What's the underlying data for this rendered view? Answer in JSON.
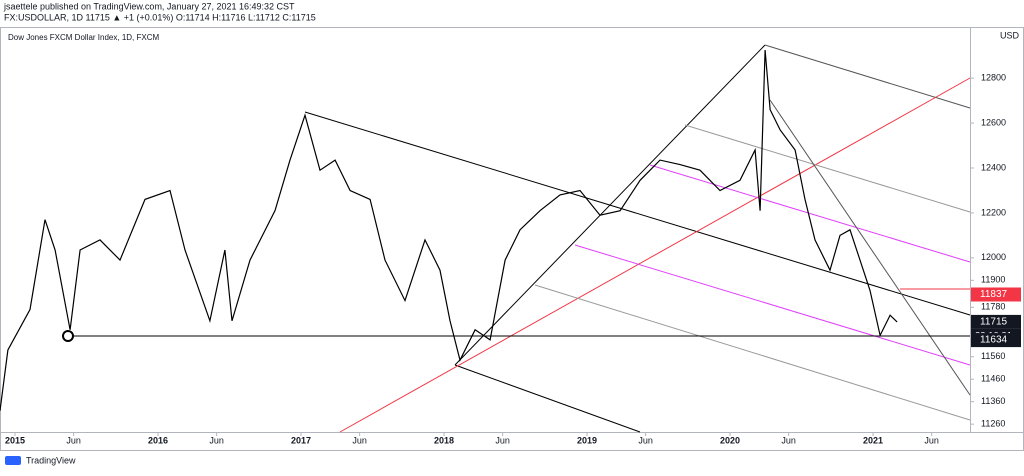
{
  "header": {
    "line1": "jsaettele published on TradingView.com, January 27, 2021 16:49:32 CST",
    "line2": "FX:USDOLLAR, 1D  11715 ▲ +1 (+0.01%)  O:11714  H:11716  L:11712  C:11715"
  },
  "footer": {
    "brand": "TradingView"
  },
  "chart_data": {
    "type": "line",
    "title": "Dow Jones FXCM Dollar Index, 1D, FXCM",
    "y_unit": "USD",
    "series": [
      {
        "name": "Dow Jones FXCM Dollar Index, 1D, FXCM",
        "color": "#000000",
        "x": [
          2014.895,
          2014.95,
          2015.105,
          2015.21,
          2015.28,
          2015.385,
          2015.455,
          2015.594,
          2015.734,
          2015.909,
          2016.084,
          2016.189,
          2016.363,
          2016.468,
          2016.517,
          2016.643,
          2016.818,
          2016.923,
          2017.028,
          2017.133,
          2017.238,
          2017.343,
          2017.483,
          2017.587,
          2017.727,
          2017.867,
          2017.972,
          2018.042,
          2018.112,
          2018.217,
          2018.322,
          2018.427,
          2018.531,
          2018.671,
          2018.811,
          2018.951,
          2019.091,
          2019.231,
          2019.371,
          2019.51,
          2019.65,
          2019.79,
          2019.93,
          2020.07,
          2020.175,
          2020.21,
          2020.245,
          2020.28,
          2020.35,
          2020.455,
          2020.524,
          2020.594,
          2020.699,
          2020.769,
          2020.839,
          2020.909,
          2020.979,
          2021.049,
          2021.119,
          2021.168
        ],
        "values": [
          11320,
          11590,
          11770,
          12170,
          12035,
          11680,
          12035,
          12080,
          11990,
          12260,
          12300,
          12035,
          11720,
          12035,
          11720,
          11990,
          12210,
          12435,
          12635,
          12390,
          12435,
          12300,
          12260,
          11990,
          11810,
          12080,
          11945,
          11720,
          11545,
          11680,
          11635,
          11990,
          12125,
          12210,
          12280,
          12300,
          12190,
          12210,
          12345,
          12435,
          12415,
          12390,
          12300,
          12345,
          12480,
          12210,
          12925,
          12660,
          12570,
          12480,
          12260,
          12080,
          11945,
          12100,
          12125,
          11990,
          11855,
          11655,
          11745,
          11715
        ]
      }
    ],
    "price_labels": [
      {
        "value": 11837,
        "color": "#f23645"
      },
      {
        "value": 11715,
        "color": "#131722"
      },
      {
        "value": 11634,
        "color": "#131722"
      }
    ],
    "countdown": "23:10:31",
    "ylim": [
      11225,
      13023
    ],
    "yticks": [
      11260,
      11360,
      11460,
      11560,
      11780,
      11900,
      12000,
      12200,
      12400,
      12600,
      12800
    ],
    "xlim": [
      2014.895,
      2021.678
    ],
    "xticks": [
      {
        "value": 2015.0,
        "label": "2015"
      },
      {
        "value": 2015.41,
        "label": "Jun"
      },
      {
        "value": 2016.0,
        "label": "2016"
      },
      {
        "value": 2016.41,
        "label": "Jun"
      },
      {
        "value": 2017.0,
        "label": "2017"
      },
      {
        "value": 2017.41,
        "label": "Jun"
      },
      {
        "value": 2018.0,
        "label": "2018"
      },
      {
        "value": 2018.41,
        "label": "Jun"
      },
      {
        "value": 2019.0,
        "label": "2019"
      },
      {
        "value": 2019.41,
        "label": "Jun"
      },
      {
        "value": 2020.0,
        "label": "2020"
      },
      {
        "value": 2020.41,
        "label": "Jun"
      },
      {
        "value": 2021.0,
        "label": "2021"
      },
      {
        "value": 2021.41,
        "label": "Jun"
      }
    ]
  }
}
